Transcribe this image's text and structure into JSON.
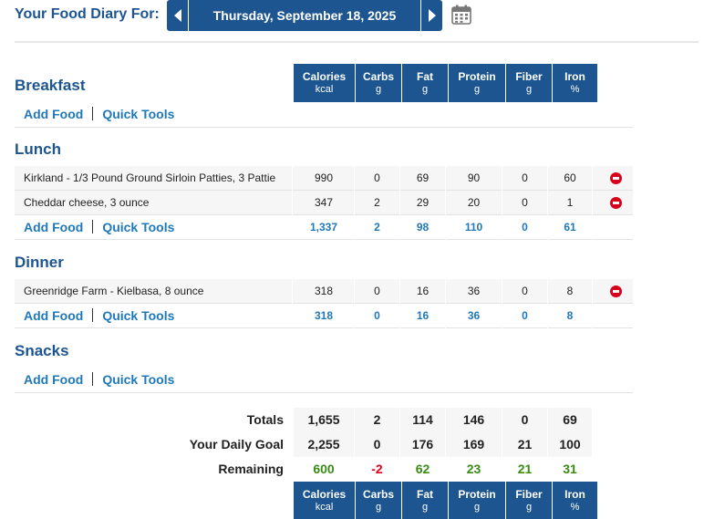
{
  "header": {
    "title": "Your Food Diary For:",
    "date": "Thursday, September 18, 2025"
  },
  "columns": [
    {
      "label": "Calories",
      "unit": "kcal"
    },
    {
      "label": "Carbs",
      "unit": "g"
    },
    {
      "label": "Fat",
      "unit": "g"
    },
    {
      "label": "Protein",
      "unit": "g"
    },
    {
      "label": "Fiber",
      "unit": "g"
    },
    {
      "label": "Iron",
      "unit": "%"
    }
  ],
  "links": {
    "add_food": "Add Food",
    "quick_tools": "Quick Tools"
  },
  "meals": {
    "breakfast": {
      "name": "Breakfast"
    },
    "lunch": {
      "name": "Lunch",
      "foods": [
        {
          "name": "Kirkland - 1/3 Pound Ground Sirloin Patties, 3 Pattie",
          "values": [
            "990",
            "0",
            "69",
            "90",
            "0",
            "60"
          ]
        },
        {
          "name": "Cheddar cheese, 3 ounce",
          "values": [
            "347",
            "2",
            "29",
            "20",
            "0",
            "1"
          ]
        }
      ],
      "totals": [
        "1,337",
        "2",
        "98",
        "110",
        "0",
        "61"
      ]
    },
    "dinner": {
      "name": "Dinner",
      "foods": [
        {
          "name": "Greenridge Farm - Kielbasa, 8 ounce",
          "values": [
            "318",
            "0",
            "16",
            "36",
            "0",
            "8"
          ]
        }
      ],
      "totals": [
        "318",
        "0",
        "16",
        "36",
        "0",
        "8"
      ]
    },
    "snacks": {
      "name": "Snacks"
    }
  },
  "summary": {
    "totals": {
      "label": "Totals",
      "values": [
        "1,655",
        "2",
        "114",
        "146",
        "0",
        "69"
      ]
    },
    "goal": {
      "label": "Your Daily Goal",
      "values": [
        "2,255",
        "0",
        "176",
        "169",
        "21",
        "100"
      ]
    },
    "remaining": {
      "label": "Remaining",
      "values": [
        "600",
        "-2",
        "62",
        "23",
        "21",
        "31"
      ]
    }
  },
  "colors": {
    "brand": "#1c5590",
    "link": "#1f78b8",
    "positive": "#3a8a16",
    "negative": "#e0001b",
    "delete": "#d9001b"
  }
}
